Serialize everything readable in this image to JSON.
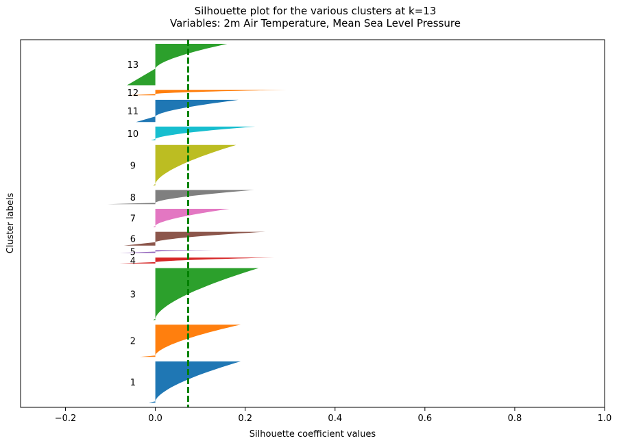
{
  "chart_data": {
    "type": "silhouette",
    "title": "Silhouette plot for the various clusters at k=13",
    "subtitle": "Variables: 2m Air Temperature, Mean Sea Level Pressure",
    "xlabel": "Silhouette coefficient values",
    "ylabel": "Cluster labels",
    "xlim": [
      -0.3,
      1.0
    ],
    "xticks": [
      -0.2,
      0.0,
      0.2,
      0.4,
      0.6,
      0.8,
      1.0
    ],
    "xtick_labels": [
      "−0.2",
      "0.0",
      "0.2",
      "0.4",
      "0.6",
      "0.8",
      "1.0"
    ],
    "average_silhouette": 0.073,
    "average_line_color": "#008000",
    "clusters": [
      {
        "label": "1",
        "color": "#1f77b4",
        "start": 10,
        "end": 100,
        "max": 0.19,
        "min": -0.015,
        "neg_frac": 0.02
      },
      {
        "label": "2",
        "color": "#ff7f0e",
        "start": 110,
        "end": 180,
        "max": 0.19,
        "min": -0.035,
        "neg_frac": 0.02
      },
      {
        "label": "3",
        "color": "#2ca02c",
        "start": 190,
        "end": 303,
        "max": 0.23,
        "min": -0.005,
        "neg_frac": 0.01
      },
      {
        "label": "4",
        "color": "#d62728",
        "start": 313,
        "end": 326,
        "max": 0.265,
        "min": -0.08,
        "neg_frac": 0.1
      },
      {
        "label": "5",
        "color": "#9467bd",
        "start": 336,
        "end": 342,
        "max": 0.13,
        "min": -0.08,
        "neg_frac": 0.2
      },
      {
        "label": "6",
        "color": "#8c564b",
        "start": 352,
        "end": 382,
        "max": 0.245,
        "min": -0.07,
        "neg_frac": 0.25
      },
      {
        "label": "7",
        "color": "#e377c2",
        "start": 392,
        "end": 432,
        "max": 0.165,
        "min": -0.005,
        "neg_frac": 0.02
      },
      {
        "label": "8",
        "color": "#7f7f7f",
        "start": 442,
        "end": 473,
        "max": 0.22,
        "min": -0.107,
        "neg_frac": 0.1
      },
      {
        "label": "9",
        "color": "#bcbd22",
        "start": 483,
        "end": 571,
        "max": 0.18,
        "min": -0.005,
        "neg_frac": 0.01
      },
      {
        "label": "10",
        "color": "#17becf",
        "start": 581,
        "end": 611,
        "max": 0.222,
        "min": -0.01,
        "neg_frac": 0.05
      },
      {
        "label": "11",
        "color": "#1f77b4",
        "start": 621,
        "end": 669,
        "max": 0.185,
        "min": -0.043,
        "neg_frac": 0.25
      },
      {
        "label": "12",
        "color": "#ff7f0e",
        "start": 679,
        "end": 691,
        "max": 0.292,
        "min": -0.062,
        "neg_frac": 0.1
      },
      {
        "label": "13",
        "color": "#2ca02c",
        "start": 701,
        "end": 791,
        "max": 0.16,
        "min": -0.063,
        "neg_frac": 0.4
      }
    ],
    "ylim": [
      0,
      800
    ],
    "grid": false,
    "legend": "none"
  }
}
